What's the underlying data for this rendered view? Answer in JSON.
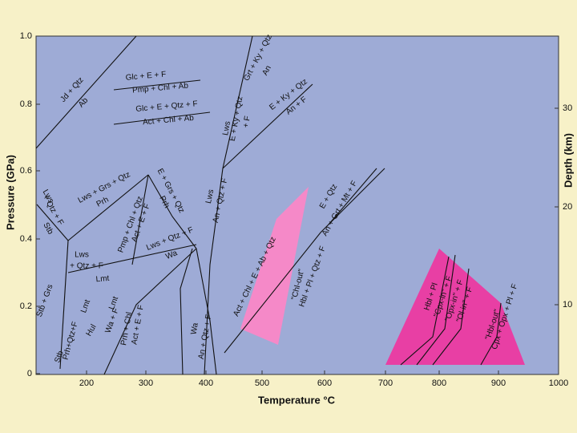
{
  "axes": {
    "y_title": "Pressure (GPa)",
    "x_title": "Temperature °C",
    "y2_title": "Depth (km)",
    "yticks": [
      "0",
      "0.2",
      "0.4",
      "0.6",
      "0.8",
      "1.0"
    ],
    "xticks": [
      "200",
      "300",
      "400",
      "500",
      "600",
      "700",
      "800",
      "900",
      "1000"
    ],
    "y2ticks": [
      "10",
      "20",
      "30"
    ]
  },
  "labels": [
    "Jd + Qtz",
    "Ab",
    "Glc + E + F",
    "Pmp + Chl + Ab",
    "Glc + E + Qtz + F",
    "Act + Chl + Ab",
    "Grt + Ky + Qtz",
    "An",
    "Lws",
    "E + Ky + Qtz",
    "+ F",
    "E + Ky + Qtz",
    "An + F",
    "Lws",
    "+ Qtz + F",
    "Stb",
    "Lws + Grs + Qtz",
    "Prh",
    "Pmp + Chl + Qtz",
    "Act + E + F",
    "E + Grs + Qtz",
    "Prh",
    "Lws",
    "An + Qtz + F",
    "Lws + Qtz + F",
    "Wa",
    "Lws",
    "+ Qtz + F",
    "Lmt",
    "Stb + Grs",
    "Stb",
    "Prh+Qtz+F",
    "Lmt",
    "Hul",
    "Lmt",
    "Wa + F",
    "Prh + Chl",
    "Act + E + F",
    "Wa",
    "An + Qtz + F",
    "Act + Chl + E + Ab + Qtz",
    "\"Chl-out\"",
    "Hbl + Pl + Qtz + F",
    "E + Qtz",
    "An + Grt + Mt + F",
    "Hbl + Pl",
    "\"Cpx-in\" + F",
    "\"Opx-in\" + F",
    "\"Ol-in\" + F",
    "\"Hbl-out\"",
    "Cpx + Opx + Pl + F"
  ]
}
